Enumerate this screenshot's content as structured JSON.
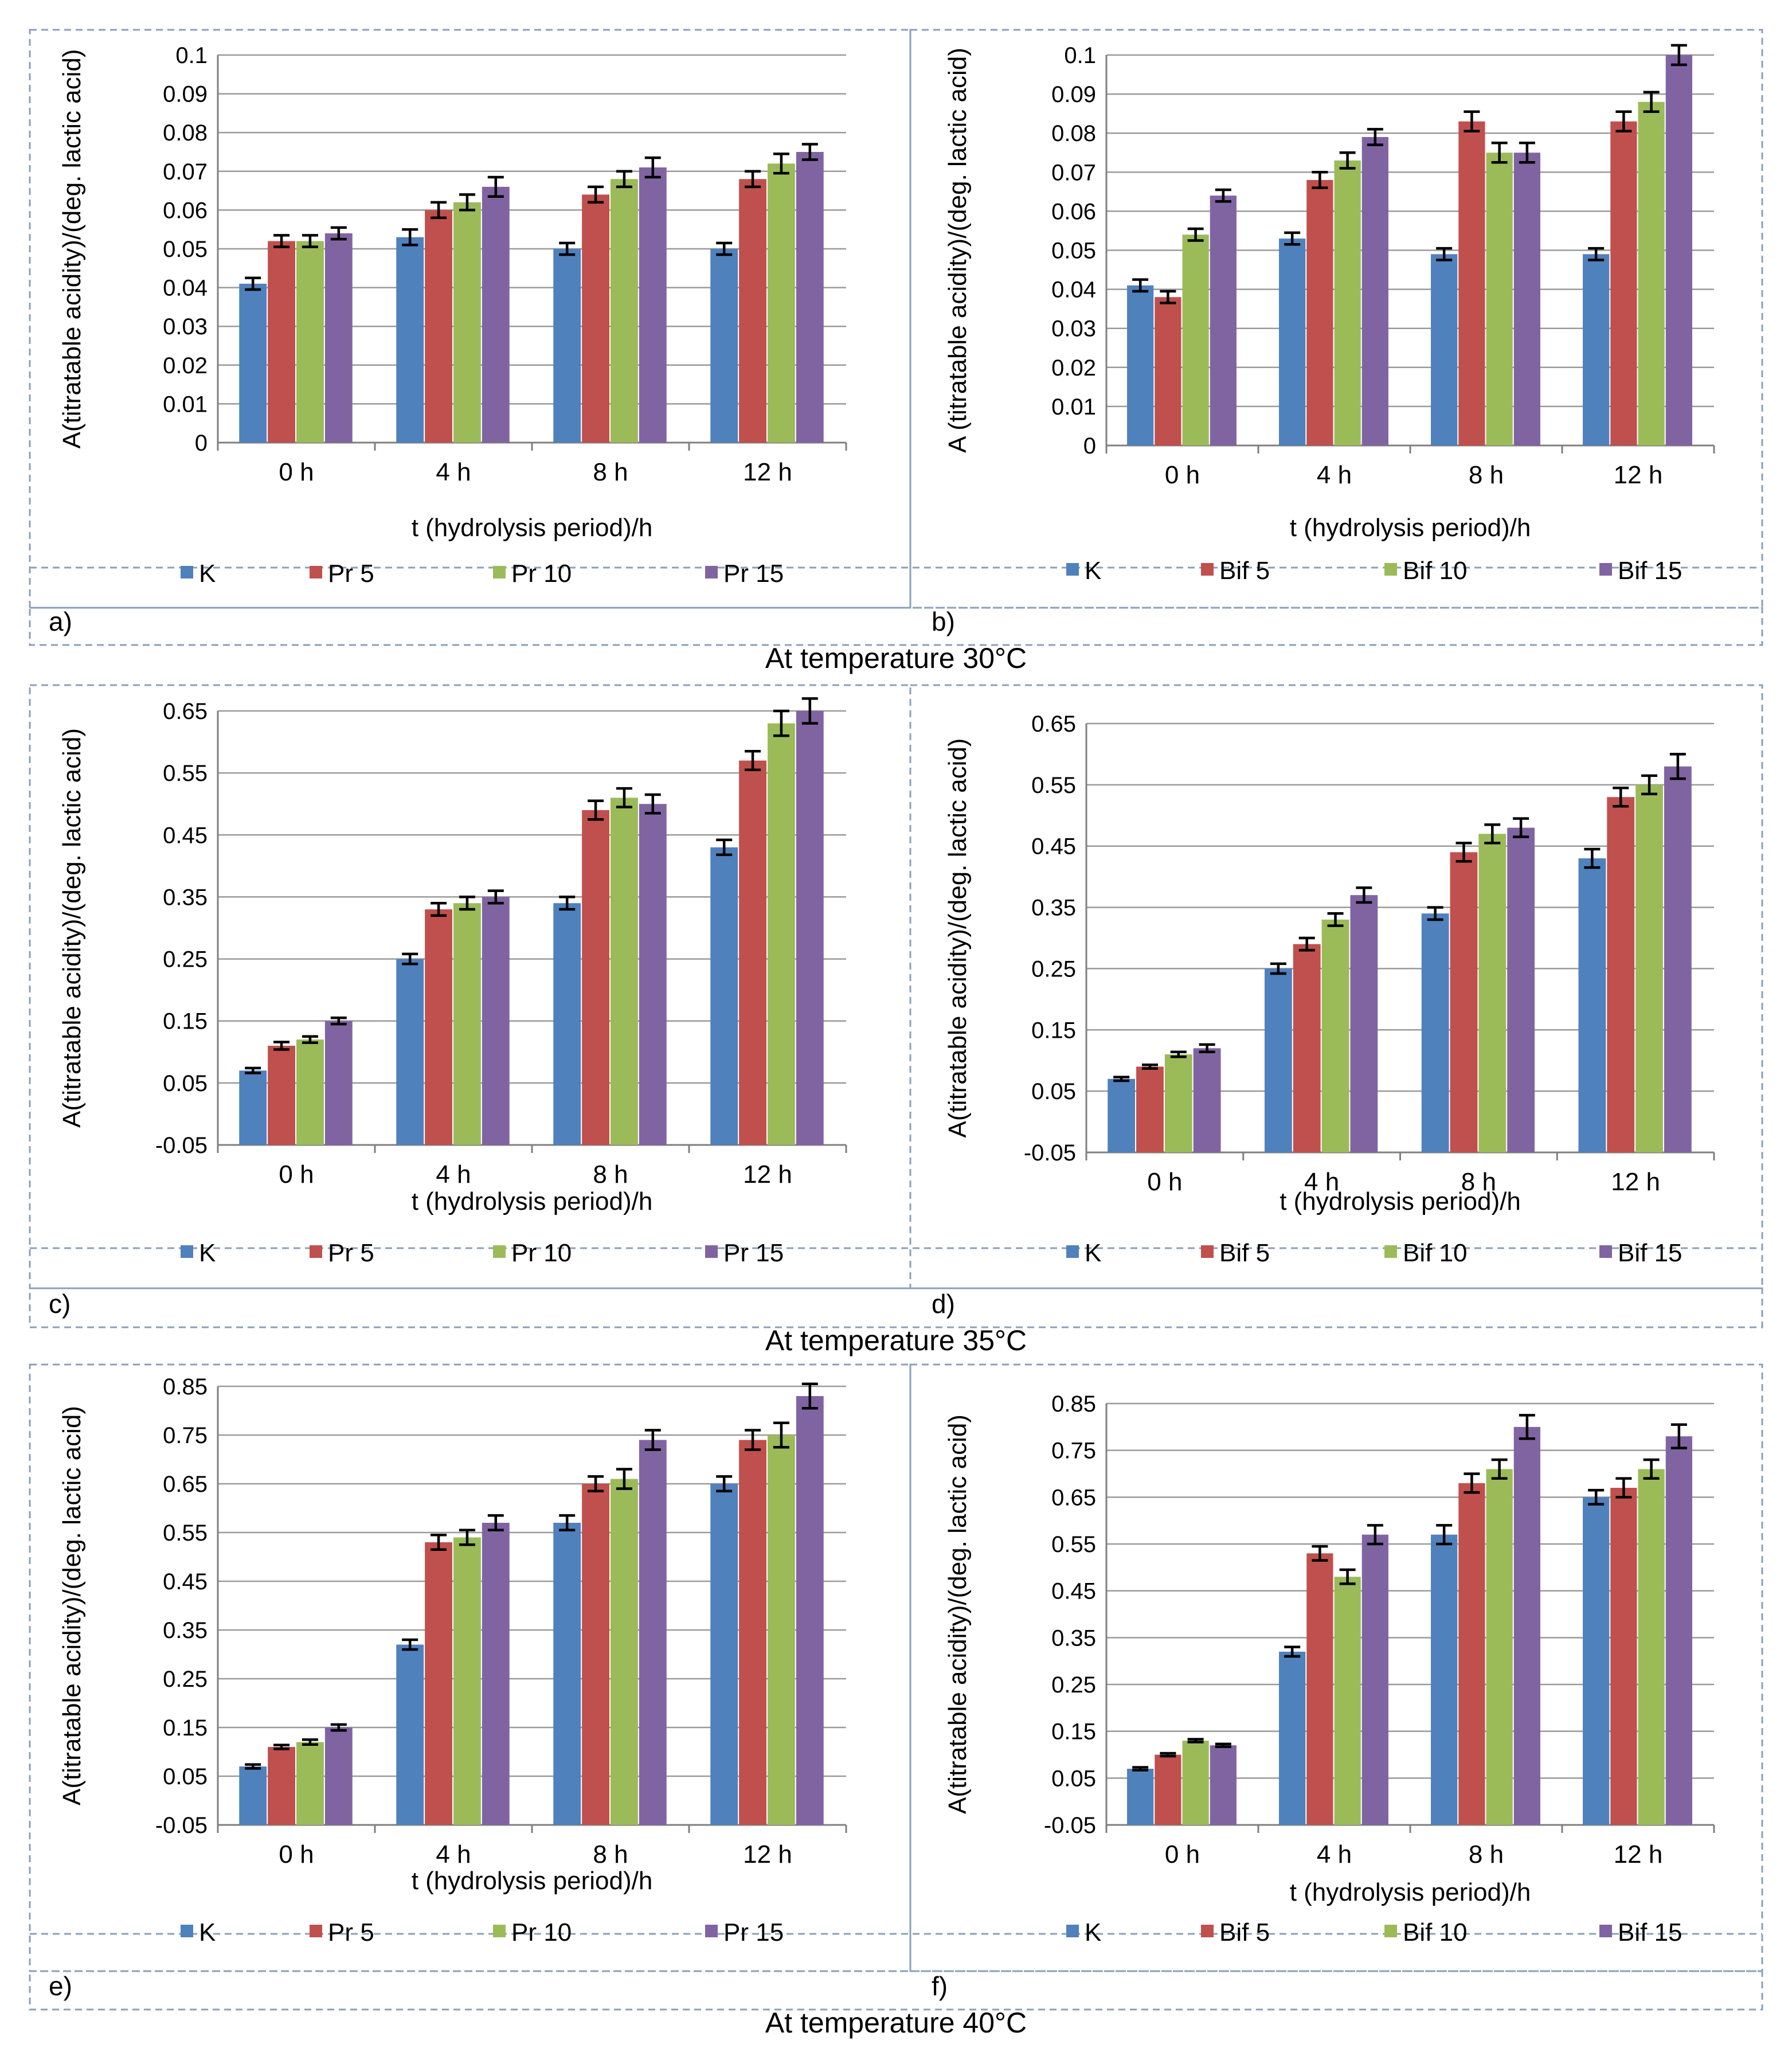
{
  "colors": {
    "K": "#4f81bd",
    "P5": "#c0504d",
    "P10": "#9bbb59",
    "P15": "#8064a2",
    "frame": "#8aa0b8"
  },
  "captions": [
    "At temperature 30°C",
    "At temperature 35°C",
    "At temperature 40°C"
  ],
  "chart_data": [
    {
      "panel": "a)",
      "type": "bar",
      "ylabel": "A(titratable acidity)/(deg. lactic acid)",
      "xlabel": "t (hydrolysis period)/h",
      "categories": [
        "0 h",
        "4 h",
        "8 h",
        "12 h"
      ],
      "yticks": [
        "0",
        "0.01",
        "0.02",
        "0.03",
        "0.04",
        "0.05",
        "0.06",
        "0.07",
        "0.08",
        "0.09",
        "0.1"
      ],
      "ylim": [
        0,
        0.1
      ],
      "grid": true,
      "legend": "bottom",
      "series": [
        {
          "name": "K",
          "values": [
            0.041,
            0.053,
            0.05,
            0.05
          ],
          "errors": [
            0.0015,
            0.002,
            0.0015,
            0.0015
          ]
        },
        {
          "name": "Pr 5",
          "values": [
            0.052,
            0.06,
            0.064,
            0.068
          ],
          "errors": [
            0.0015,
            0.002,
            0.002,
            0.002
          ]
        },
        {
          "name": "Pr 10",
          "values": [
            0.052,
            0.062,
            0.068,
            0.072
          ],
          "errors": [
            0.0015,
            0.002,
            0.002,
            0.0025
          ]
        },
        {
          "name": "Pr 15",
          "values": [
            0.054,
            0.066,
            0.071,
            0.075
          ],
          "errors": [
            0.0015,
            0.0025,
            0.0025,
            0.002
          ]
        }
      ]
    },
    {
      "panel": "b)",
      "type": "bar",
      "ylabel": "A (titratable acidity)/(deg. lactic acid)",
      "xlabel": "t (hydrolysis period)/h",
      "categories": [
        "0 h",
        "4 h",
        "8 h",
        "12 h"
      ],
      "yticks": [
        "0",
        "0.01",
        "0.02",
        "0.03",
        "0.04",
        "0.05",
        "0.06",
        "0.07",
        "0.08",
        "0.09",
        "0.1"
      ],
      "ylim": [
        0,
        0.1
      ],
      "grid": true,
      "legend": "bottom",
      "series": [
        {
          "name": "K",
          "values": [
            0.041,
            0.053,
            0.049,
            0.049
          ],
          "errors": [
            0.0015,
            0.0015,
            0.0015,
            0.0015
          ]
        },
        {
          "name": "Bif 5",
          "values": [
            0.038,
            0.068,
            0.083,
            0.083
          ],
          "errors": [
            0.0015,
            0.002,
            0.0025,
            0.0025
          ]
        },
        {
          "name": "Bif 10",
          "values": [
            0.054,
            0.073,
            0.075,
            0.088
          ],
          "errors": [
            0.0015,
            0.002,
            0.0025,
            0.0025
          ]
        },
        {
          "name": "Bif 15",
          "values": [
            0.064,
            0.079,
            0.075,
            0.1
          ],
          "errors": [
            0.0015,
            0.002,
            0.0025,
            0.0025
          ]
        }
      ]
    },
    {
      "panel": "c)",
      "type": "bar",
      "ylabel": "A(titratable acidity)/(deg. lactic acid)",
      "xlabel": "t (hydrolysis period)/h",
      "categories": [
        "0 h",
        "4 h",
        "8 h",
        "12 h"
      ],
      "yticks": [
        "-0.05",
        "0.05",
        "0.15",
        "0.25",
        "0.35",
        "0.45",
        "0.55",
        "0.65"
      ],
      "ylim": [
        -0.05,
        0.65
      ],
      "grid": true,
      "legend": "bottom",
      "series": [
        {
          "name": "K",
          "values": [
            0.07,
            0.25,
            0.34,
            0.43
          ],
          "errors": [
            0.004,
            0.008,
            0.01,
            0.012
          ]
        },
        {
          "name": "Pr 5",
          "values": [
            0.11,
            0.33,
            0.49,
            0.57
          ],
          "errors": [
            0.006,
            0.01,
            0.015,
            0.015
          ]
        },
        {
          "name": "Pr 10",
          "values": [
            0.12,
            0.34,
            0.51,
            0.63
          ],
          "errors": [
            0.005,
            0.01,
            0.015,
            0.02
          ]
        },
        {
          "name": "Pr 15",
          "values": [
            0.15,
            0.35,
            0.5,
            0.65
          ],
          "errors": [
            0.005,
            0.01,
            0.015,
            0.02
          ]
        }
      ]
    },
    {
      "panel": "d)",
      "type": "bar",
      "ylabel": "A(titratable acidity)/(deg. lactic acid)",
      "xlabel": "t (hydrolysis period)/h",
      "categories": [
        "0 h",
        "4 h",
        "8 h",
        "12 h"
      ],
      "yticks": [
        "-0.05",
        "0.05",
        "0.15",
        "0.25",
        "0.35",
        "0.45",
        "0.55",
        "0.65"
      ],
      "ylim": [
        -0.05,
        0.65
      ],
      "grid": true,
      "legend": "bottom",
      "series": [
        {
          "name": "K",
          "values": [
            0.07,
            0.25,
            0.34,
            0.43
          ],
          "errors": [
            0.003,
            0.008,
            0.01,
            0.015
          ]
        },
        {
          "name": "Bif 5",
          "values": [
            0.09,
            0.29,
            0.44,
            0.53
          ],
          "errors": [
            0.003,
            0.01,
            0.015,
            0.015
          ]
        },
        {
          "name": "Bif 10",
          "values": [
            0.11,
            0.33,
            0.47,
            0.55
          ],
          "errors": [
            0.004,
            0.01,
            0.015,
            0.015
          ]
        },
        {
          "name": "Bif 15",
          "values": [
            0.12,
            0.37,
            0.48,
            0.58
          ],
          "errors": [
            0.006,
            0.012,
            0.015,
            0.02
          ]
        }
      ]
    },
    {
      "panel": "e)",
      "type": "bar",
      "ylabel": "A(titratable acidity)/(deg. lactic acid)",
      "xlabel": "t (hydrolysis period)/h",
      "categories": [
        "0 h",
        "4 h",
        "8 h",
        "12 h"
      ],
      "yticks": [
        "-0.05",
        "0.05",
        "0.15",
        "0.25",
        "0.35",
        "0.45",
        "0.55",
        "0.65",
        "0.75",
        "0.85"
      ],
      "ylim": [
        -0.05,
        0.85
      ],
      "grid": true,
      "legend": "bottom",
      "series": [
        {
          "name": "K",
          "values": [
            0.07,
            0.32,
            0.57,
            0.65
          ],
          "errors": [
            0.004,
            0.01,
            0.015,
            0.015
          ]
        },
        {
          "name": "Pr 5",
          "values": [
            0.11,
            0.53,
            0.65,
            0.74
          ],
          "errors": [
            0.004,
            0.015,
            0.015,
            0.02
          ]
        },
        {
          "name": "Pr 10",
          "values": [
            0.12,
            0.54,
            0.66,
            0.75
          ],
          "errors": [
            0.005,
            0.015,
            0.02,
            0.025
          ]
        },
        {
          "name": "Pr 15",
          "values": [
            0.15,
            0.57,
            0.74,
            0.83
          ],
          "errors": [
            0.006,
            0.015,
            0.02,
            0.025
          ]
        }
      ]
    },
    {
      "panel": "f)",
      "type": "bar",
      "ylabel": "A(titratable acidity)/(deg. lactic acid)",
      "xlabel": "t (hydrolysis period)/h",
      "categories": [
        "0 h",
        "4 h",
        "8 h",
        "12 h"
      ],
      "yticks": [
        "-0.05",
        "0.05",
        "0.15",
        "0.25",
        "0.35",
        "0.45",
        "0.55",
        "0.65",
        "0.75",
        "0.85"
      ],
      "ylim": [
        -0.05,
        0.85
      ],
      "grid": true,
      "legend": "bottom",
      "series": [
        {
          "name": "K",
          "values": [
            0.07,
            0.32,
            0.57,
            0.65
          ],
          "errors": [
            0.003,
            0.01,
            0.02,
            0.015
          ]
        },
        {
          "name": "Bif 5",
          "values": [
            0.1,
            0.53,
            0.68,
            0.67
          ],
          "errors": [
            0.003,
            0.015,
            0.02,
            0.02
          ]
        },
        {
          "name": "Bif 10",
          "values": [
            0.13,
            0.48,
            0.71,
            0.71
          ],
          "errors": [
            0.003,
            0.015,
            0.02,
            0.02
          ]
        },
        {
          "name": "Bif 15",
          "values": [
            0.12,
            0.57,
            0.8,
            0.78
          ],
          "errors": [
            0.003,
            0.02,
            0.025,
            0.025
          ]
        }
      ]
    }
  ]
}
